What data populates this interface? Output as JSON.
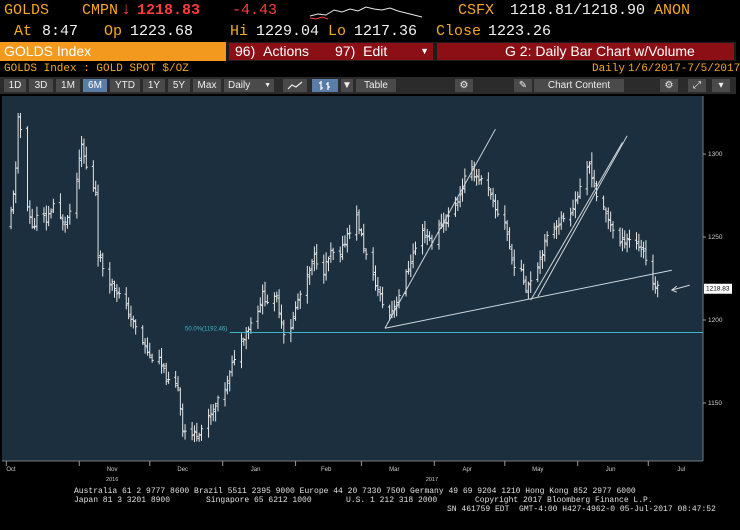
{
  "header": {
    "ticker": "GOLDS",
    "cmpn_label": "CMPN",
    "last_arrow": "↓",
    "last_price": "1218.83",
    "change": "-4.43",
    "source": "CSFX",
    "bid_ask": "1218.81/1218.90",
    "user": "ANON",
    "at_label": "At",
    "at_time": "8:47",
    "open_label": "Op",
    "open": "1223.68",
    "high_label": "Hi",
    "high": "1229.04",
    "low_label": "Lo",
    "low": "1217.36",
    "close_label": "Close",
    "close": "1223.26"
  },
  "toolbar": {
    "index_name": "GOLDS Index",
    "actions_num": "96)",
    "actions_label": "Actions",
    "edit_num": "97)",
    "edit_label": "Edit",
    "chart_title": "G 2: Daily Bar Chart w/Volume"
  },
  "subheader": {
    "security": "GOLDS Index : GOLD SPOT $/OZ",
    "frequency": "Daily",
    "range": "1/6/2017-7/5/2017"
  },
  "periods": [
    "1D",
    "3D",
    "1M",
    "6M",
    "YTD",
    "1Y",
    "5Y",
    "Max"
  ],
  "period_selected": "6M",
  "period_dropdown": "Daily",
  "table_label": "Table",
  "chart_content_label": "Chart Content",
  "colors": {
    "amber": "#f6a822",
    "orange_bar": "#f39a1e",
    "menu_red": "#8d0f16",
    "plot_bg": "#1b2f3e",
    "bars": "#e6e6e6",
    "fib_line": "#3fb6c8"
  },
  "chart_data": {
    "type": "bar",
    "frequency": "daily OHLC",
    "x_ticks": [
      "Oct",
      "Nov",
      "Dec",
      "Jan",
      "Feb",
      "Mar",
      "Apr",
      "May",
      "Jun",
      "Jul"
    ],
    "year_labels": [
      "2016",
      "2017"
    ],
    "y_ticks": [
      1150,
      1200,
      1250,
      1300
    ],
    "ylim": [
      1115,
      1335
    ],
    "last_price_label": "1218.83",
    "fib_label": "50.0%(1192.46)",
    "fib_level": 1192.46,
    "close_path": [
      [
        "2016-10-01",
        1255
      ],
      [
        "2016-10-03",
        1265
      ],
      [
        "2016-10-05",
        1290
      ],
      [
        "2016-10-06",
        1320
      ],
      [
        "2016-10-08",
        1310
      ],
      [
        "2016-10-10",
        1270
      ],
      [
        "2016-10-12",
        1255
      ],
      [
        "2016-10-15",
        1265
      ],
      [
        "2016-10-18",
        1260
      ],
      [
        "2016-10-21",
        1270
      ],
      [
        "2016-10-25",
        1258
      ],
      [
        "2016-10-29",
        1265
      ],
      [
        "2016-11-02",
        1305
      ],
      [
        "2016-11-05",
        1285
      ],
      [
        "2016-11-08",
        1278
      ],
      [
        "2016-11-09",
        1240
      ],
      [
        "2016-11-12",
        1228
      ],
      [
        "2016-11-16",
        1220
      ],
      [
        "2016-11-20",
        1210
      ],
      [
        "2016-11-25",
        1195
      ],
      [
        "2016-12-01",
        1178
      ],
      [
        "2016-12-05",
        1175
      ],
      [
        "2016-12-09",
        1162
      ],
      [
        "2016-12-13",
        1160
      ],
      [
        "2016-12-15",
        1135
      ],
      [
        "2016-12-18",
        1130
      ],
      [
        "2016-12-21",
        1132
      ],
      [
        "2016-12-24",
        1136
      ],
      [
        "2016-12-28",
        1145
      ],
      [
        "2017-01-03",
        1162
      ],
      [
        "2017-01-06",
        1178
      ],
      [
        "2017-01-09",
        1188
      ],
      [
        "2017-01-12",
        1196
      ],
      [
        "2017-01-15",
        1203
      ],
      [
        "2017-01-18",
        1215
      ],
      [
        "2017-01-21",
        1210
      ],
      [
        "2017-01-24",
        1213
      ],
      [
        "2017-01-27",
        1193
      ],
      [
        "2017-01-30",
        1196
      ],
      [
        "2017-02-02",
        1212
      ],
      [
        "2017-02-06",
        1225
      ],
      [
        "2017-02-09",
        1238
      ],
      [
        "2017-02-13",
        1230
      ],
      [
        "2017-02-16",
        1240
      ],
      [
        "2017-02-20",
        1238
      ],
      [
        "2017-02-23",
        1252
      ],
      [
        "2017-02-27",
        1262
      ],
      [
        "2017-03-01",
        1250
      ],
      [
        "2017-03-04",
        1233
      ],
      [
        "2017-03-07",
        1222
      ],
      [
        "2017-03-10",
        1210
      ],
      [
        "2017-03-13",
        1203
      ],
      [
        "2017-03-16",
        1212
      ],
      [
        "2017-03-19",
        1223
      ],
      [
        "2017-03-23",
        1240
      ],
      [
        "2017-03-27",
        1253
      ],
      [
        "2017-03-31",
        1248
      ],
      [
        "2017-04-03",
        1256
      ],
      [
        "2017-04-07",
        1262
      ],
      [
        "2017-04-11",
        1272
      ],
      [
        "2017-04-14",
        1285
      ],
      [
        "2017-04-17",
        1290
      ],
      [
        "2017-04-21",
        1284
      ],
      [
        "2017-04-24",
        1278
      ],
      [
        "2017-04-27",
        1266
      ],
      [
        "2017-05-01",
        1260
      ],
      [
        "2017-05-04",
        1236
      ],
      [
        "2017-05-08",
        1228
      ],
      [
        "2017-05-10",
        1220
      ],
      [
        "2017-05-14",
        1230
      ],
      [
        "2017-05-18",
        1246
      ],
      [
        "2017-05-21",
        1256
      ],
      [
        "2017-05-25",
        1260
      ],
      [
        "2017-05-29",
        1266
      ],
      [
        "2017-06-02",
        1278
      ],
      [
        "2017-06-06",
        1294
      ],
      [
        "2017-06-09",
        1275
      ],
      [
        "2017-06-12",
        1266
      ],
      [
        "2017-06-15",
        1258
      ],
      [
        "2017-06-19",
        1246
      ],
      [
        "2017-06-22",
        1250
      ],
      [
        "2017-06-26",
        1246
      ],
      [
        "2017-06-29",
        1242
      ],
      [
        "2017-07-03",
        1222
      ],
      [
        "2017-07-05",
        1218.83
      ]
    ],
    "trendlines": [
      {
        "from": [
          "2017-03-11",
          1195
        ],
        "to": [
          "2017-04-27",
          1315
        ]
      },
      {
        "from": [
          "2017-05-12",
          1212
        ],
        "to": [
          "2017-06-20",
          1307
        ]
      },
      {
        "from": [
          "2017-05-15",
          1214
        ],
        "to": [
          "2017-06-22",
          1311
        ]
      },
      {
        "from": [
          "2017-03-11",
          1195
        ],
        "to": [
          "2017-07-11",
          1230
        ]
      }
    ]
  },
  "footer": {
    "line1": "Australia 61 2 9777 8600 Brazil 5511 2395 9000 Europe 44 20 7330 7500 Germany 49 69 9204 1210 Hong Kong 852 2977 6000",
    "line2a": "Japan 81 3 3201 8900",
    "line2b": "Singapore 65 6212 1000",
    "line2c": "U.S. 1 212 318 2000",
    "line2d": "Copyright 2017 Bloomberg Finance L.P.",
    "line3": "SN 461759 EDT  GMT-4:00 H427-4962-0 05-Jul-2017 08:47:52"
  }
}
